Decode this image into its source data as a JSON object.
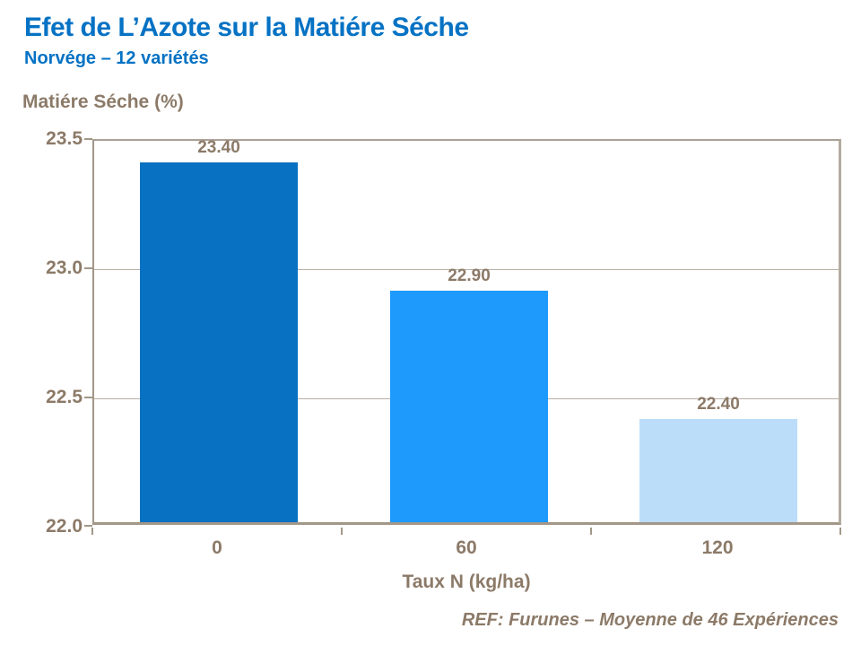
{
  "header": {
    "title": "Efet de L’Azote sur la Matiére Séche",
    "subtitle": "Norvége – 12 variétés"
  },
  "footer": {
    "ref": "REF: Furunes – Moyenne de 46 Expériences"
  },
  "colors": {
    "title_blue": "#0572C4",
    "text_brown": "#8C7A68",
    "gridline": "#B9B0A5",
    "axis": "#A29788",
    "bar_colors": [
      "#0971C1",
      "#1E9AFD",
      "#BBDDFA"
    ]
  },
  "chart_data": {
    "type": "bar",
    "title": "Efet de L’Azote sur la Matiére Séche",
    "subtitle": "Norvége – 12 variétés",
    "categories": [
      "0",
      "60",
      "120"
    ],
    "values": [
      23.4,
      22.9,
      22.4
    ],
    "value_labels": [
      "23.40",
      "22.90",
      "22.40"
    ],
    "xlabel": "Taux N (kg/ha)",
    "ylabel": "Matiére Séche (%)",
    "ylim": [
      22.0,
      23.5
    ],
    "yticks": [
      "23.5",
      "23.0",
      "22.5",
      "22.0"
    ],
    "ytick_values": [
      23.5,
      23.0,
      22.5,
      22.0
    ],
    "grid": "horizontal",
    "legend": "none"
  }
}
